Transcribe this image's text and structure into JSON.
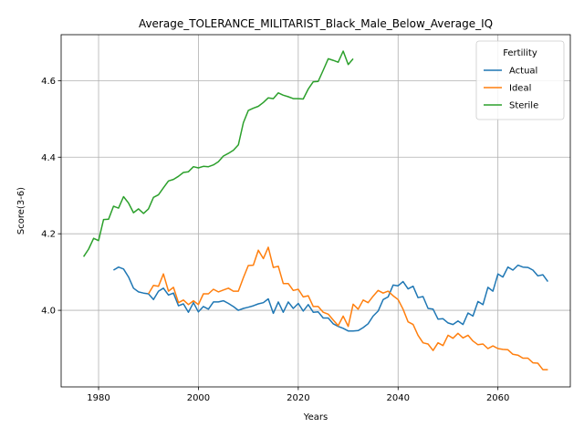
{
  "chart_data": {
    "type": "line",
    "title": "Average_TOLERANCE_MILITARIST_Black_Male_Below_Average_IQ",
    "xlabel": "Years",
    "ylabel": "Score(3-6)",
    "xlim": [
      1972.5,
      2074.5
    ],
    "ylim": [
      3.8,
      4.72
    ],
    "xticks": [
      1980,
      2000,
      2020,
      2040,
      2060
    ],
    "yticks": [
      4.0,
      4.2,
      4.4,
      4.6
    ],
    "ytick_labels": [
      "4.0",
      "4.2",
      "4.4",
      "4.6"
    ],
    "grid": true,
    "legend": {
      "title": "Fertility",
      "position": "top-right"
    },
    "series": [
      {
        "name": "Actual",
        "color": "#1f77b4",
        "x": [
          1983,
          1984,
          1985,
          1986,
          1987,
          1988,
          1989,
          1990,
          1991,
          1992,
          1993,
          1994,
          1995,
          1996,
          1997,
          1998,
          1999,
          2000,
          2001,
          2002,
          2003,
          2004,
          2005,
          2006,
          2007,
          2008,
          2009,
          2010,
          2011,
          2012,
          2013,
          2014,
          2015,
          2016,
          2017,
          2018,
          2019,
          2020,
          2021,
          2022,
          2023,
          2024,
          2025,
          2026,
          2027,
          2028,
          2029,
          2030,
          2031,
          2032,
          2033,
          2034,
          2035,
          2036,
          2037,
          2038,
          2039,
          2040,
          2041,
          2042,
          2043,
          2044,
          2045,
          2046,
          2047,
          2048,
          2049,
          2050,
          2051,
          2052,
          2053,
          2054,
          2055,
          2056,
          2057,
          2058,
          2059,
          2060,
          2061,
          2062,
          2063,
          2064,
          2065,
          2066,
          2067,
          2068,
          2069,
          2070
        ],
        "values": [
          4.105,
          4.113,
          4.108,
          4.087,
          4.058,
          4.048,
          4.045,
          4.043,
          4.028,
          4.05,
          4.058,
          4.04,
          4.045,
          4.012,
          4.017,
          3.995,
          4.02,
          3.996,
          4.01,
          4.003,
          4.022,
          4.022,
          4.025,
          4.018,
          4.01,
          4.0,
          4.005,
          4.008,
          4.012,
          4.017,
          4.02,
          4.03,
          3.992,
          4.022,
          3.995,
          4.022,
          4.005,
          4.018,
          3.998,
          4.015,
          3.995,
          3.996,
          3.98,
          3.98,
          3.965,
          3.958,
          3.953,
          3.946,
          3.946,
          3.947,
          3.955,
          3.965,
          3.985,
          3.998,
          4.028,
          4.035,
          4.066,
          4.064,
          4.075,
          4.056,
          4.063,
          4.033,
          4.036,
          4.005,
          4.003,
          3.977,
          3.978,
          3.967,
          3.963,
          3.972,
          3.963,
          3.993,
          3.985,
          4.023,
          4.015,
          4.06,
          4.05,
          4.095,
          4.087,
          4.113,
          4.105,
          4.118,
          4.113,
          4.112,
          4.105,
          4.09,
          4.093,
          4.075
        ]
      },
      {
        "name": "Ideal",
        "color": "#ff7f0e",
        "x": [
          1990,
          1991,
          1992,
          1993,
          1994,
          1995,
          1996,
          1997,
          1998,
          1999,
          2000,
          2001,
          2002,
          2003,
          2004,
          2005,
          2006,
          2007,
          2008,
          2009,
          2010,
          2011,
          2012,
          2013,
          2014,
          2015,
          2016,
          2017,
          2018,
          2019,
          2020,
          2021,
          2022,
          2023,
          2024,
          2025,
          2026,
          2027,
          2028,
          2029,
          2030,
          2031,
          2032,
          2033,
          2034,
          2035,
          2036,
          2037,
          2038,
          2039,
          2040,
          2041,
          2042,
          2043,
          2044,
          2045,
          2046,
          2047,
          2048,
          2049,
          2050,
          2051,
          2052,
          2053,
          2054,
          2055,
          2056,
          2057,
          2058,
          2059,
          2060,
          2061,
          2062,
          2063,
          2064,
          2065,
          2066,
          2067,
          2068,
          2069,
          2070
        ],
        "values": [
          4.043,
          4.065,
          4.063,
          4.095,
          4.05,
          4.06,
          4.02,
          4.027,
          4.015,
          4.025,
          4.015,
          4.043,
          4.043,
          4.055,
          4.048,
          4.053,
          4.058,
          4.05,
          4.05,
          4.085,
          4.117,
          4.118,
          4.157,
          4.135,
          4.165,
          4.112,
          4.115,
          4.07,
          4.07,
          4.052,
          4.055,
          4.035,
          4.038,
          4.01,
          4.01,
          3.995,
          3.99,
          3.975,
          3.96,
          3.985,
          3.958,
          4.016,
          4.003,
          4.027,
          4.02,
          4.037,
          4.052,
          4.045,
          4.05,
          4.038,
          4.028,
          4.003,
          3.97,
          3.963,
          3.935,
          3.915,
          3.912,
          3.895,
          3.915,
          3.908,
          3.935,
          3.927,
          3.94,
          3.928,
          3.935,
          3.92,
          3.91,
          3.912,
          3.9,
          3.907,
          3.9,
          3.898,
          3.897,
          3.885,
          3.883,
          3.875,
          3.875,
          3.863,
          3.862,
          3.845,
          3.845
        ]
      },
      {
        "name": "Sterile",
        "color": "#2ca02c",
        "x": [
          1977,
          1978,
          1979,
          1980,
          1981,
          1982,
          1983,
          1984,
          1985,
          1986,
          1987,
          1988,
          1989,
          1990,
          1991,
          1992,
          1993,
          1994,
          1995,
          1996,
          1997,
          1998,
          1999,
          2000,
          2001,
          2002,
          2003,
          2004,
          2005,
          2006,
          2007,
          2008,
          2009,
          2010,
          2011,
          2012,
          2013,
          2014,
          2015,
          2016,
          2017,
          2018,
          2019,
          2020,
          2021,
          2022,
          2023,
          2024,
          2025,
          2026,
          2027,
          2028,
          2029,
          2030,
          2031
        ],
        "values": [
          4.14,
          4.16,
          4.188,
          4.182,
          4.237,
          4.238,
          4.272,
          4.267,
          4.297,
          4.28,
          4.255,
          4.265,
          4.253,
          4.265,
          4.295,
          4.302,
          4.32,
          4.338,
          4.342,
          4.35,
          4.36,
          4.362,
          4.375,
          4.372,
          4.376,
          4.375,
          4.38,
          4.388,
          4.403,
          4.41,
          4.418,
          4.432,
          4.49,
          4.522,
          4.528,
          4.533,
          4.543,
          4.555,
          4.553,
          4.568,
          4.562,
          4.558,
          4.553,
          4.553,
          4.552,
          4.578,
          4.597,
          4.598,
          4.627,
          4.657,
          4.653,
          4.648,
          4.677,
          4.642,
          4.657
        ]
      }
    ]
  }
}
